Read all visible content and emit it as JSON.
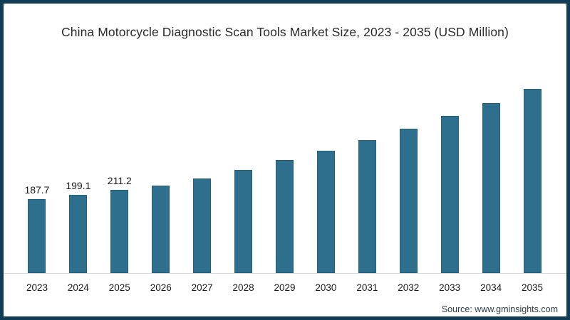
{
  "title": "China Motorcycle Diagnostic Scan Tools Market Size, 2023 - 2035 (USD Million)",
  "source": "Source: www.gminsights.com",
  "frame": {
    "border_color": "#113c55",
    "background_color": "#ffffff",
    "baseline_color": "#d8d8d8"
  },
  "chart_data": {
    "type": "bar",
    "title": "China Motorcycle Diagnostic Scan Tools Market Size, 2023 - 2035 (USD Million)",
    "categories": [
      "2023",
      "2024",
      "2025",
      "2026",
      "2027",
      "2028",
      "2029",
      "2030",
      "2031",
      "2032",
      "2033",
      "2034",
      "2035"
    ],
    "values": [
      187.7,
      199.1,
      211.2,
      222.0,
      241.5,
      262.5,
      287.0,
      311.0,
      339.0,
      367.0,
      400.5,
      432.0,
      468.5
    ],
    "data_labels": [
      "187.7",
      "199.1",
      "211.2",
      "",
      "",
      "",
      "",
      "",
      "",
      "",
      "",
      "",
      ""
    ],
    "xlabel": "",
    "ylabel": "",
    "ylim": [
      0,
      500
    ],
    "grid": false,
    "legend": false,
    "bar_color": "#2e6f8e",
    "bar_edge_color": "#23607e"
  }
}
